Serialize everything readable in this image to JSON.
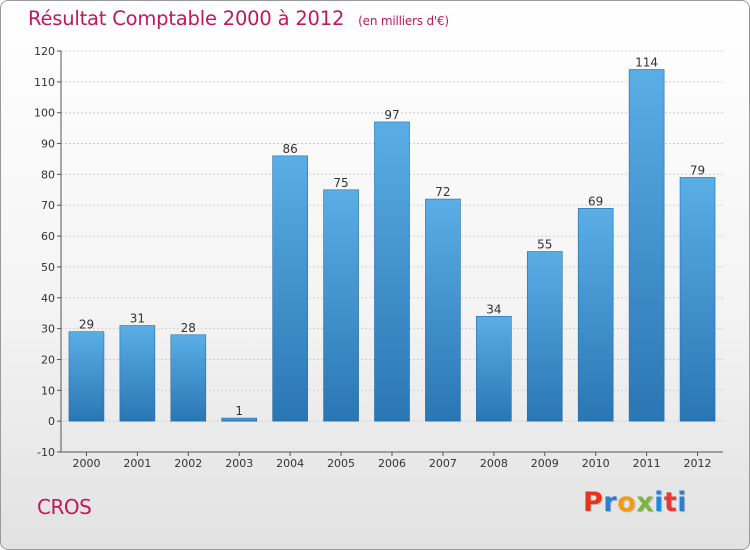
{
  "header": {
    "title": "Résultat Comptable 2000 à 2012",
    "subtitle": "(en milliers d'€)"
  },
  "footer": {
    "commune": "CROS",
    "logo_text": "Proxiti",
    "logo_colors": [
      "#e6331a",
      "#2a7fd4",
      "#f39c12",
      "#7cb342",
      "#1e88e5",
      "#e53935",
      "#2a7fd4"
    ]
  },
  "colors": {
    "bar_light": "#5aaee6",
    "bar_dark": "#2a76b4",
    "accent": "#c2185b",
    "grid": "#cfcfcf"
  },
  "chart_data": {
    "type": "bar",
    "categories": [
      "2000",
      "2001",
      "2002",
      "2003",
      "2004",
      "2005",
      "2006",
      "2007",
      "2008",
      "2009",
      "2010",
      "2011",
      "2012"
    ],
    "values": [
      29,
      31,
      28,
      1,
      86,
      75,
      97,
      72,
      34,
      55,
      69,
      114,
      79
    ],
    "data_labels": [
      "29",
      "31",
      "28",
      "1",
      "86",
      "75",
      "97",
      "72",
      "34",
      "55",
      "69",
      "114",
      "79"
    ],
    "yticks": [
      -10,
      0,
      10,
      20,
      30,
      40,
      50,
      60,
      70,
      80,
      90,
      100,
      110,
      120
    ],
    "ytick_labels": [
      "-10",
      "0",
      "10",
      "20",
      "30",
      "40",
      "50",
      "60",
      "70",
      "80",
      "90",
      "100",
      "110",
      "120"
    ],
    "ylim": [
      -10,
      120
    ],
    "grid": true,
    "xlabel": "",
    "ylabel": ""
  }
}
